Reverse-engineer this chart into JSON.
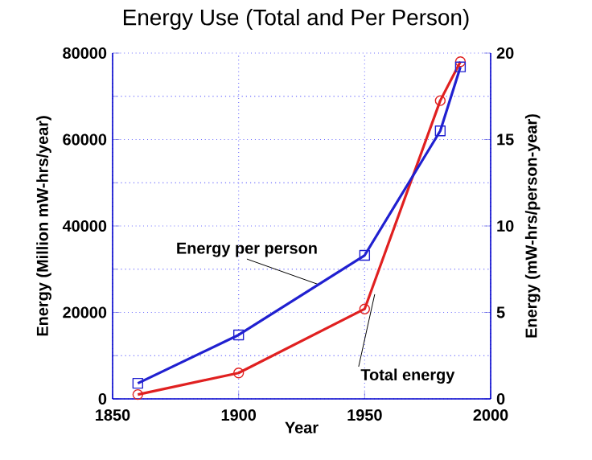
{
  "chart_data": {
    "type": "line",
    "title": "Energy Use (Total and Per Person)",
    "xlabel": "Year",
    "ylabel": "Energy (Million mW-hrs/year)",
    "y2label": "Energy (mW-hrs/person-year)",
    "xlim": [
      1850,
      2000
    ],
    "xticks": [
      1850,
      1900,
      1950,
      2000
    ],
    "ylim": [
      0,
      80000
    ],
    "yticks": [
      0,
      20000,
      40000,
      60000,
      80000
    ],
    "y2lim": [
      0,
      20
    ],
    "y2ticks": [
      0,
      5,
      10,
      15,
      20
    ],
    "grid": true,
    "line_style": "solid",
    "series": [
      {
        "color": "#e02020",
        "marker": "circle",
        "x": [
          1860,
          1900,
          1950,
          1980,
          1988
        ],
        "values": [
          1000,
          6000,
          20800,
          69000,
          78000
        ]
      },
      {
        "color": "#2020d0",
        "marker": "square",
        "axis": "y2",
        "x": [
          1860,
          1900,
          1950,
          1980,
          1988
        ],
        "values": [
          0.9,
          3.7,
          8.3,
          15.5,
          19.2
        ]
      }
    ],
    "annotations": [
      {
        "text": "Energy per person",
        "x": 1932,
        "y": 26400
      },
      {
        "text": "Total energy",
        "x": 1954,
        "y": 24200
      }
    ]
  }
}
